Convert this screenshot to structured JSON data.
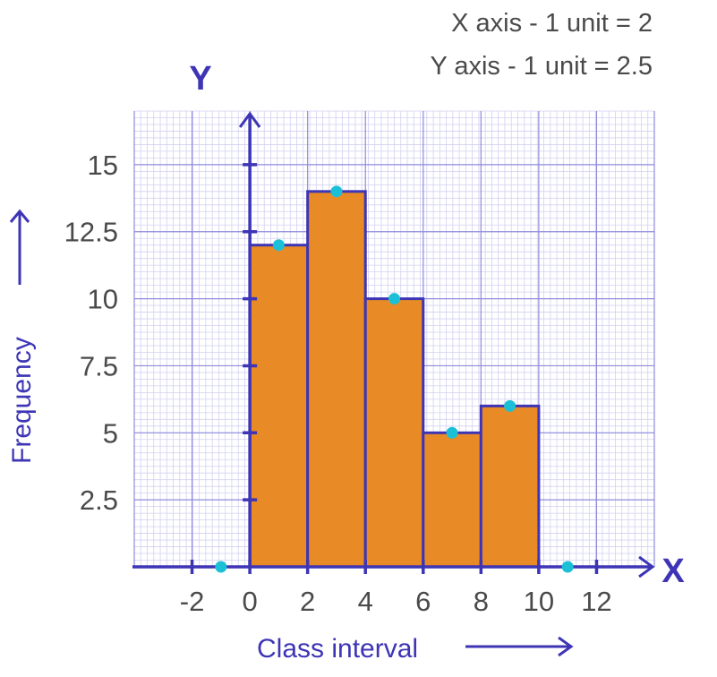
{
  "notes": {
    "x_scale": "X axis - 1 unit = 2",
    "y_scale": "Y axis - 1 unit = 2.5"
  },
  "colors": {
    "axis": "#3d35b5",
    "bar_fill": "#e88b26",
    "bar_stroke": "#3d35b5",
    "marker": "#1cc0d6",
    "grid_major": "#8f8bdc",
    "grid_minor": "#d3d1f1",
    "tick_text": "#4a4a4a"
  },
  "chart_data": {
    "type": "bar",
    "subtype": "histogram-with-frequency-polygon-points",
    "axis_y_letter": "Y",
    "axis_x_letter": "X",
    "xlabel": "Class interval",
    "ylabel": "Frequency",
    "x_ticks": [
      "-2",
      "0",
      "2",
      "4",
      "6",
      "8",
      "10",
      "12"
    ],
    "y_ticks": [
      "2.5",
      "5",
      "7.5",
      "10",
      "12.5",
      "15"
    ],
    "xlim": [
      -4,
      14
    ],
    "ylim": [
      0,
      17
    ],
    "bins": [
      {
        "start": 0,
        "end": 2,
        "value": 12
      },
      {
        "start": 2,
        "end": 4,
        "value": 14
      },
      {
        "start": 4,
        "end": 6,
        "value": 10
      },
      {
        "start": 6,
        "end": 8,
        "value": 5
      },
      {
        "start": 8,
        "end": 10,
        "value": 6
      }
    ],
    "midpoints": [
      {
        "x": -1,
        "y": 0
      },
      {
        "x": 1,
        "y": 12
      },
      {
        "x": 3,
        "y": 14
      },
      {
        "x": 5,
        "y": 10
      },
      {
        "x": 7,
        "y": 5
      },
      {
        "x": 9,
        "y": 6
      },
      {
        "x": 11,
        "y": 0
      }
    ]
  }
}
